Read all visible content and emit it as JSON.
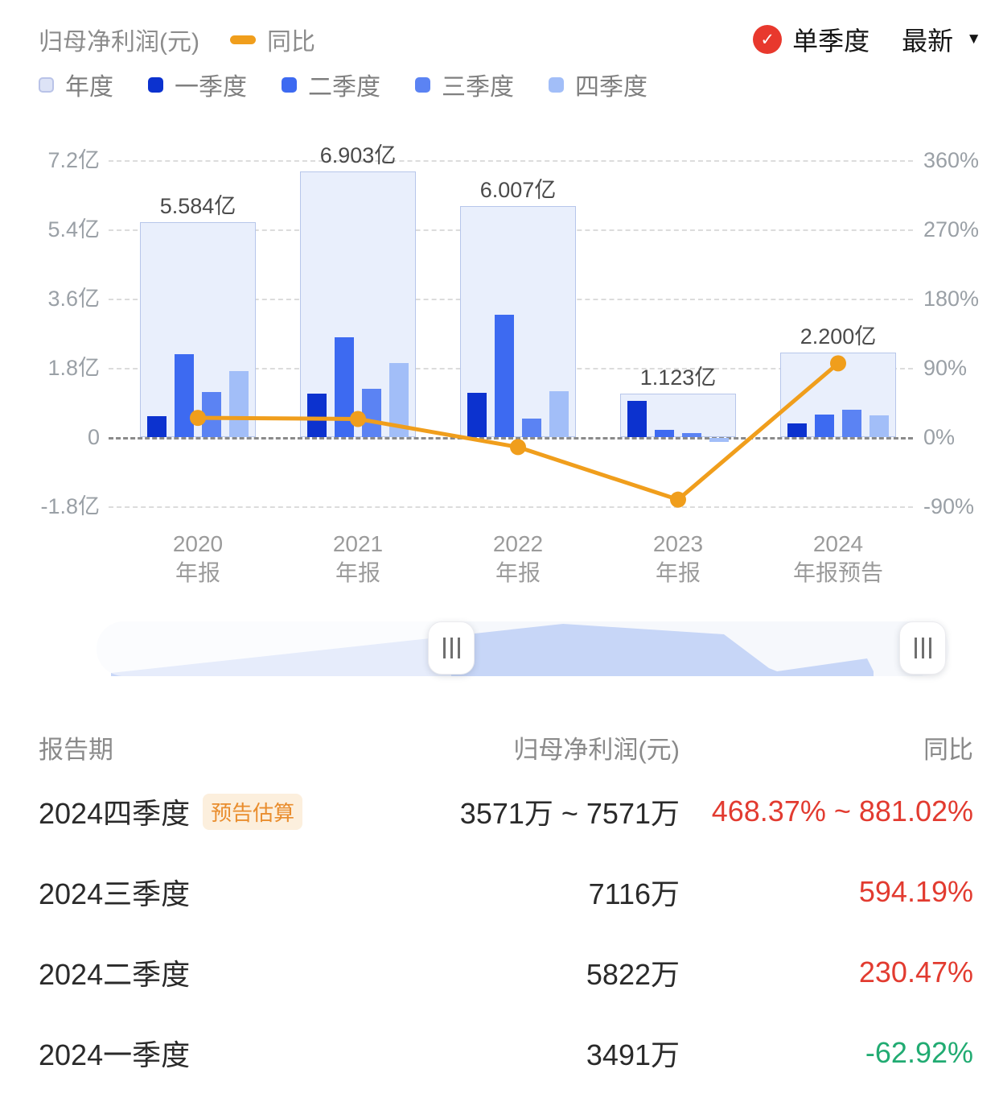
{
  "header": {
    "series_title": "归母净利润(元)",
    "yoy_label": "同比",
    "quarter_toggle_label": "单季度",
    "dropdown_label": "最新",
    "dropdown_arrow": "▼",
    "check_icon": "✓",
    "accent_red": "#e8382d"
  },
  "legend": [
    {
      "label": "年度",
      "color": "#dde3f6",
      "border": "#b9c3e8"
    },
    {
      "label": "一季度",
      "color": "#0c32cf",
      "border": ""
    },
    {
      "label": "二季度",
      "color": "#3d6af1",
      "border": ""
    },
    {
      "label": "三季度",
      "color": "#5b83f3",
      "border": ""
    },
    {
      "label": "四季度",
      "color": "#a2bef8",
      "border": ""
    }
  ],
  "colors": {
    "annual_fill": "#e9effc",
    "annual_border": "#b7c6ea",
    "quarters": [
      "#0c32cf",
      "#3d6af1",
      "#5b83f3",
      "#a2bef8"
    ],
    "line": "#f09e1c",
    "nav_area": "#c7d6f7"
  },
  "chart_data": {
    "type": "bar",
    "title": "归母净利润(元) 与 同比",
    "left_axis": {
      "unit": "亿",
      "labels": [
        "7.2亿",
        "5.4亿",
        "3.6亿",
        "1.8亿",
        "0",
        "-1.8亿"
      ],
      "values": [
        7.2,
        5.4,
        3.6,
        1.8,
        0,
        -1.8
      ]
    },
    "right_axis": {
      "unit": "%",
      "labels": [
        "360%",
        "270%",
        "180%",
        "90%",
        "0%",
        "-90%"
      ],
      "values": [
        360,
        270,
        180,
        90,
        0,
        -90
      ]
    },
    "grid": "dashed",
    "legend_position": "top-left",
    "groups": [
      {
        "year": "2020",
        "period": "年报",
        "annual_yi": 5.584,
        "annual_label": "5.584亿",
        "quarters_yi": [
          0.55,
          2.15,
          1.17,
          1.72
        ],
        "yoy_pct": 25.0
      },
      {
        "year": "2021",
        "period": "年报",
        "annual_yi": 6.903,
        "annual_label": "6.903亿",
        "quarters_yi": [
          1.13,
          2.6,
          1.25,
          1.92
        ],
        "yoy_pct": 23.6
      },
      {
        "year": "2022",
        "period": "年报",
        "annual_yi": 6.007,
        "annual_label": "6.007亿",
        "quarters_yi": [
          1.15,
          3.18,
          0.48,
          1.19
        ],
        "yoy_pct": -13.0
      },
      {
        "year": "2023",
        "period": "年报",
        "annual_yi": 1.123,
        "annual_label": "1.123亿",
        "quarters_yi": [
          0.94,
          0.18,
          0.1,
          -0.1
        ],
        "yoy_pct": -81.3
      },
      {
        "year": "2024",
        "period": "年报预告",
        "annual_yi": 2.2,
        "annual_label": "2.200亿",
        "quarters_yi": [
          0.349,
          0.582,
          0.712,
          0.557
        ],
        "yoy_pct": 95.9
      }
    ]
  },
  "table": {
    "headers": {
      "period": "报告期",
      "value": "归母净利润(元)",
      "change": "同比"
    },
    "up_color": "#e23b30",
    "down_color": "#21ab72",
    "badge_bg": "#fcefdd",
    "badge_color": "#e98d2e",
    "rows": [
      {
        "period": "2024四季度",
        "badge": "预告估算",
        "value": "3571万 ~ 7571万",
        "change": "468.37% ~ 881.02%",
        "direction": "up"
      },
      {
        "period": "2024三季度",
        "badge": "",
        "value": "7116万",
        "change": "594.19%",
        "direction": "up"
      },
      {
        "period": "2024二季度",
        "badge": "",
        "value": "5822万",
        "change": "230.47%",
        "direction": "up"
      },
      {
        "period": "2024一季度",
        "badge": "",
        "value": "3491万",
        "change": "-62.92%",
        "direction": "down"
      }
    ]
  }
}
